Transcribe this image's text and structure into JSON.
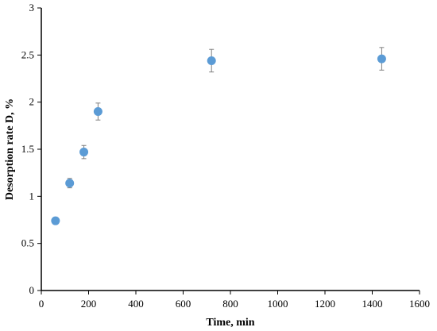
{
  "chart_data": {
    "type": "scatter",
    "title": "",
    "xlabel": "Time, min",
    "ylabel": "Desorption rate D, %",
    "xlim": [
      0,
      1600
    ],
    "ylim": [
      0,
      3
    ],
    "x_ticks": [
      0,
      200,
      400,
      600,
      800,
      1000,
      1200,
      1400,
      1600
    ],
    "y_ticks": [
      0,
      0.5,
      1,
      1.5,
      2,
      2.5,
      3
    ],
    "x_tick_labels": [
      "0",
      "200",
      "400",
      "600",
      "800",
      "1000",
      "1200",
      "1400",
      "1600"
    ],
    "y_tick_labels": [
      "0",
      "0.5",
      "1",
      "1.5",
      "2",
      "2.5",
      "3"
    ],
    "grid": false,
    "legend": "none",
    "marker_color": "#5b9bd5",
    "error_bar_color": "#7f7f7f",
    "series": [
      {
        "x": [
          60,
          120,
          180,
          240,
          720,
          1440
        ],
        "y": [
          0.74,
          1.14,
          1.47,
          1.9,
          2.44,
          2.46
        ],
        "error": [
          0.03,
          0.05,
          0.07,
          0.09,
          0.12,
          0.12
        ]
      }
    ]
  }
}
